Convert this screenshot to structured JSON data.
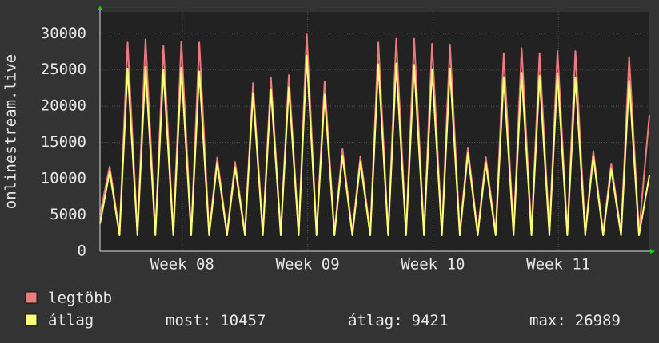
{
  "chart_data": {
    "type": "line",
    "y_label": "onlinestream.live",
    "x": [
      -0.54,
      0,
      0.55,
      1,
      1.55,
      2,
      2.55,
      3,
      3.55,
      4,
      4.55,
      5,
      5.55,
      6,
      6.55,
      7,
      7.55,
      8,
      8.55,
      9,
      9.55,
      10,
      10.55,
      11,
      11.55,
      12,
      12.55,
      13,
      13.55,
      14,
      14.55,
      15,
      15.55,
      16,
      16.55,
      17,
      17.55,
      18,
      18.55,
      19,
      19.55,
      20,
      20.55,
      21,
      21.55,
      22,
      22.55,
      23,
      23.55,
      24,
      24.55,
      25,
      25.55,
      26,
      26.55,
      27,
      27.55,
      28,
      28.55,
      29,
      29.55,
      30.13
    ],
    "series": [
      {
        "name": "legtöbb",
        "color": "#ee7b7b",
        "values": [
          5000,
          11700,
          2600,
          28800,
          2600,
          29200,
          2600,
          28300,
          2600,
          28900,
          2600,
          28800,
          2600,
          12900,
          2600,
          12300,
          2600,
          23200,
          2600,
          24000,
          2600,
          24300,
          2600,
          30000,
          2600,
          23400,
          2600,
          14100,
          2600,
          13100,
          2600,
          28800,
          2600,
          29300,
          2600,
          29300,
          2600,
          28600,
          2600,
          28500,
          2600,
          14300,
          2600,
          13000,
          2600,
          27300,
          2600,
          28000,
          2600,
          27300,
          2600,
          27600,
          2600,
          27600,
          2600,
          13800,
          2600,
          12100,
          2600,
          26800,
          2600,
          18800
        ]
      },
      {
        "name": "átlag",
        "color": "#ffff77",
        "values": [
          3800,
          11000,
          2200,
          25200,
          2200,
          25400,
          2200,
          25000,
          2200,
          25300,
          2200,
          24800,
          2200,
          12200,
          2200,
          11600,
          2200,
          21800,
          2200,
          22300,
          2200,
          22600,
          2200,
          26989,
          2200,
          21600,
          2200,
          13200,
          2200,
          12300,
          2200,
          25800,
          2200,
          25900,
          2200,
          25700,
          2200,
          25100,
          2200,
          25200,
          2200,
          13500,
          2200,
          12200,
          2200,
          24000,
          2200,
          24600,
          2200,
          24200,
          2200,
          24500,
          2200,
          24000,
          2200,
          13100,
          2200,
          11300,
          2200,
          23500,
          2200,
          10457
        ]
      }
    ],
    "xlim": [
      -0.54,
      30.13
    ],
    "xticks": [
      {
        "value": 4.05,
        "label": "Week 08"
      },
      {
        "value": 11.05,
        "label": "Week 09"
      },
      {
        "value": 18.05,
        "label": "Week 10"
      },
      {
        "value": 25.05,
        "label": "Week 11"
      }
    ],
    "ylim": [
      0,
      33000
    ],
    "yticks": [
      0,
      5000,
      10000,
      15000,
      20000,
      25000,
      30000
    ],
    "grid": true,
    "stats": [
      {
        "label": "most:",
        "value": 10457
      },
      {
        "label": "átlag:",
        "value": 9421
      },
      {
        "label": "max:",
        "value": 26989
      }
    ]
  }
}
